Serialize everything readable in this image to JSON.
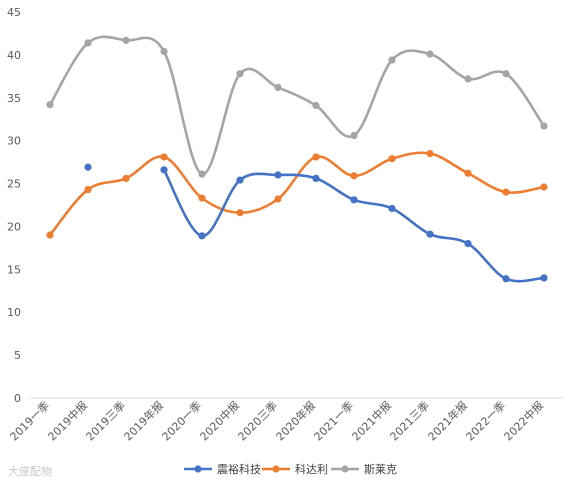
{
  "chart_data": {
    "type": "line",
    "title": "",
    "xlabel": "",
    "ylabel": "",
    "categories": [
      "2019一季",
      "2019中报",
      "2019三季",
      "2019年报",
      "2020一季",
      "2020中报",
      "2020三季",
      "2020年报",
      "2021一季",
      "2021中报",
      "2021三季",
      "2021年报",
      "2022一季",
      "2022中报"
    ],
    "ylim": [
      0,
      45
    ],
    "yticks": [
      0,
      5,
      10,
      15,
      20,
      25,
      30,
      35,
      40,
      45
    ],
    "grid": false,
    "legend": "bottom",
    "series": [
      {
        "name": "震裕科技",
        "color": "#4472c4",
        "values": [
          null,
          26.9,
          null,
          26.6,
          18.9,
          25.4,
          26.0,
          25.6,
          23.1,
          22.1,
          19.1,
          18.0,
          13.9,
          14.0
        ]
      },
      {
        "name": "科达利",
        "color": "#ed7d31",
        "values": [
          19.0,
          24.3,
          25.6,
          28.1,
          23.3,
          21.6,
          23.2,
          28.1,
          25.9,
          27.9,
          28.5,
          26.2,
          24.0,
          24.6
        ]
      },
      {
        "name": "斯莱克",
        "color": "#a5a5a5",
        "values": [
          34.2,
          41.4,
          41.7,
          40.4,
          26.1,
          37.8,
          36.2,
          34.1,
          30.6,
          39.4,
          40.1,
          37.2,
          37.8,
          31.7
        ]
      }
    ]
  },
  "watermark": "大座配物"
}
